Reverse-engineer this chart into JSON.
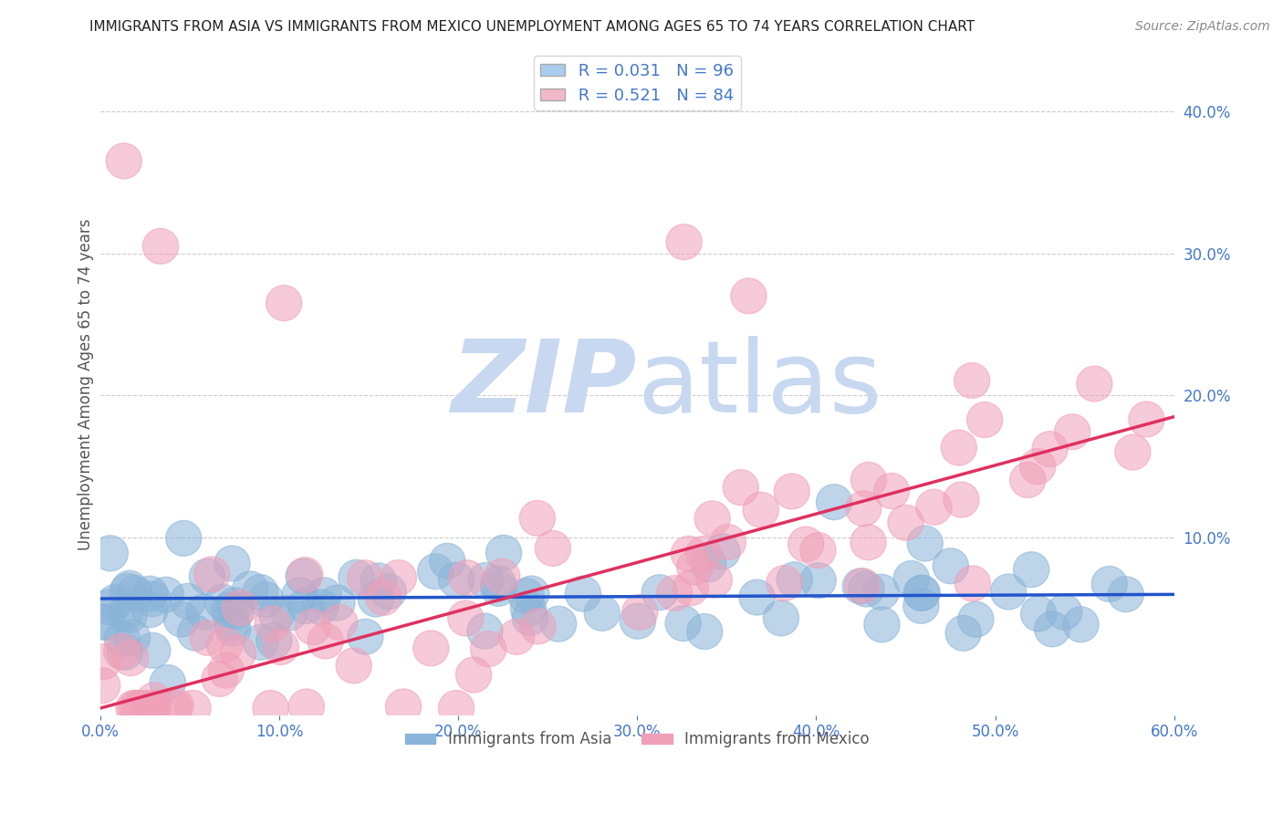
{
  "title": "IMMIGRANTS FROM ASIA VS IMMIGRANTS FROM MEXICO UNEMPLOYMENT AMONG AGES 65 TO 74 YEARS CORRELATION CHART",
  "source": "Source: ZipAtlas.com",
  "ylabel": "Unemployment Among Ages 65 to 74 years",
  "legend_labels": [
    "Immigrants from Asia",
    "Immigrants from Mexico"
  ],
  "legend_R": [
    0.031,
    0.521
  ],
  "legend_N": [
    96,
    84
  ],
  "xlim": [
    0.0,
    0.6
  ],
  "ylim": [
    -0.025,
    0.44
  ],
  "yticks_right": [
    0.1,
    0.2,
    0.3,
    0.4
  ],
  "yticks_grid": [
    0.1,
    0.2,
    0.3,
    0.4
  ],
  "xticks": [
    0.0,
    0.1,
    0.2,
    0.3,
    0.4,
    0.5,
    0.6
  ],
  "scatter_color_asia": "#8ab4d8",
  "scatter_color_mexico": "#f0a0b8",
  "line_color_asia": "#2255cc",
  "line_color_mexico": "#e03060",
  "watermark_text": "ZIPatlas",
  "watermark_color": "#c8d8f0",
  "background_color": "#ffffff",
  "grid_color": "#cccccc",
  "tick_label_color": "#4477cc",
  "title_color": "#222222",
  "source_color": "#888888",
  "legend_patch_asia": "#aaccee",
  "legend_patch_mexico": "#f0b8c8"
}
